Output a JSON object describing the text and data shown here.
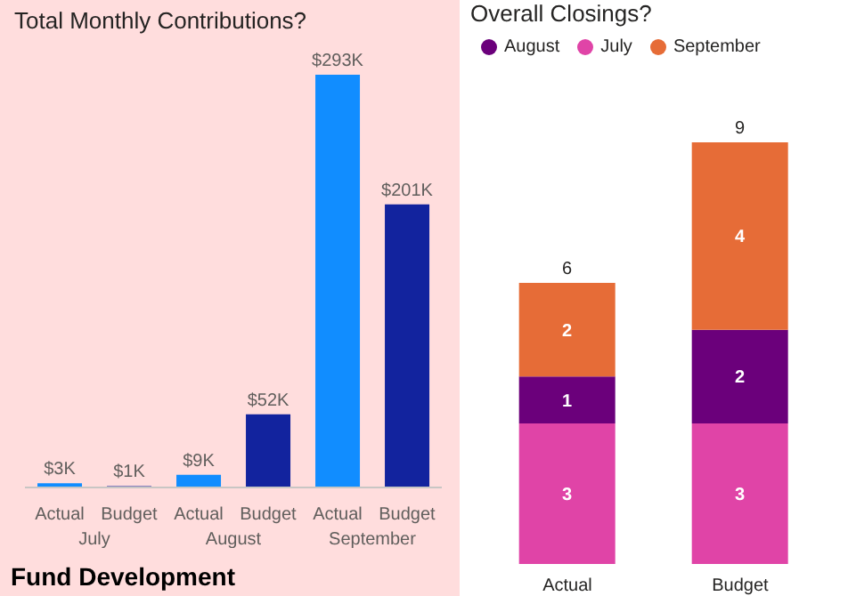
{
  "chart_data": [
    {
      "type": "bar",
      "title": "Total Monthly Contributions?",
      "categories": [
        "Actual",
        "Budget",
        "Actual",
        "Budget",
        "Actual",
        "Budget"
      ],
      "values": [
        3,
        1,
        9,
        52,
        293,
        201
      ],
      "colors": [
        "#118dff",
        "#12239e",
        "#118dff",
        "#12239e",
        "#118dff",
        "#12239e"
      ],
      "value_labels": [
        "$3K",
        "$1K",
        "$9K",
        "$52K",
        "$293K",
        "$201K"
      ],
      "annotations": [
        "July",
        "August",
        "September",
        "Fund Development"
      ]
    },
    {
      "type": "bar",
      "title": "Overall Closings?",
      "categories": [
        "Actual",
        "Budget"
      ],
      "stacked": true,
      "legend": "top left",
      "data_labels": true,
      "totals": [
        "6",
        "9"
      ],
      "series": [
        {
          "name": "July",
          "color": "#e044a7",
          "values": [
            3,
            3
          ]
        },
        {
          "name": "August",
          "color": "#6b007b",
          "values": [
            1,
            2
          ]
        },
        {
          "name": "September",
          "color": "#e66c37",
          "values": [
            2,
            4
          ]
        }
      ]
    }
  ]
}
